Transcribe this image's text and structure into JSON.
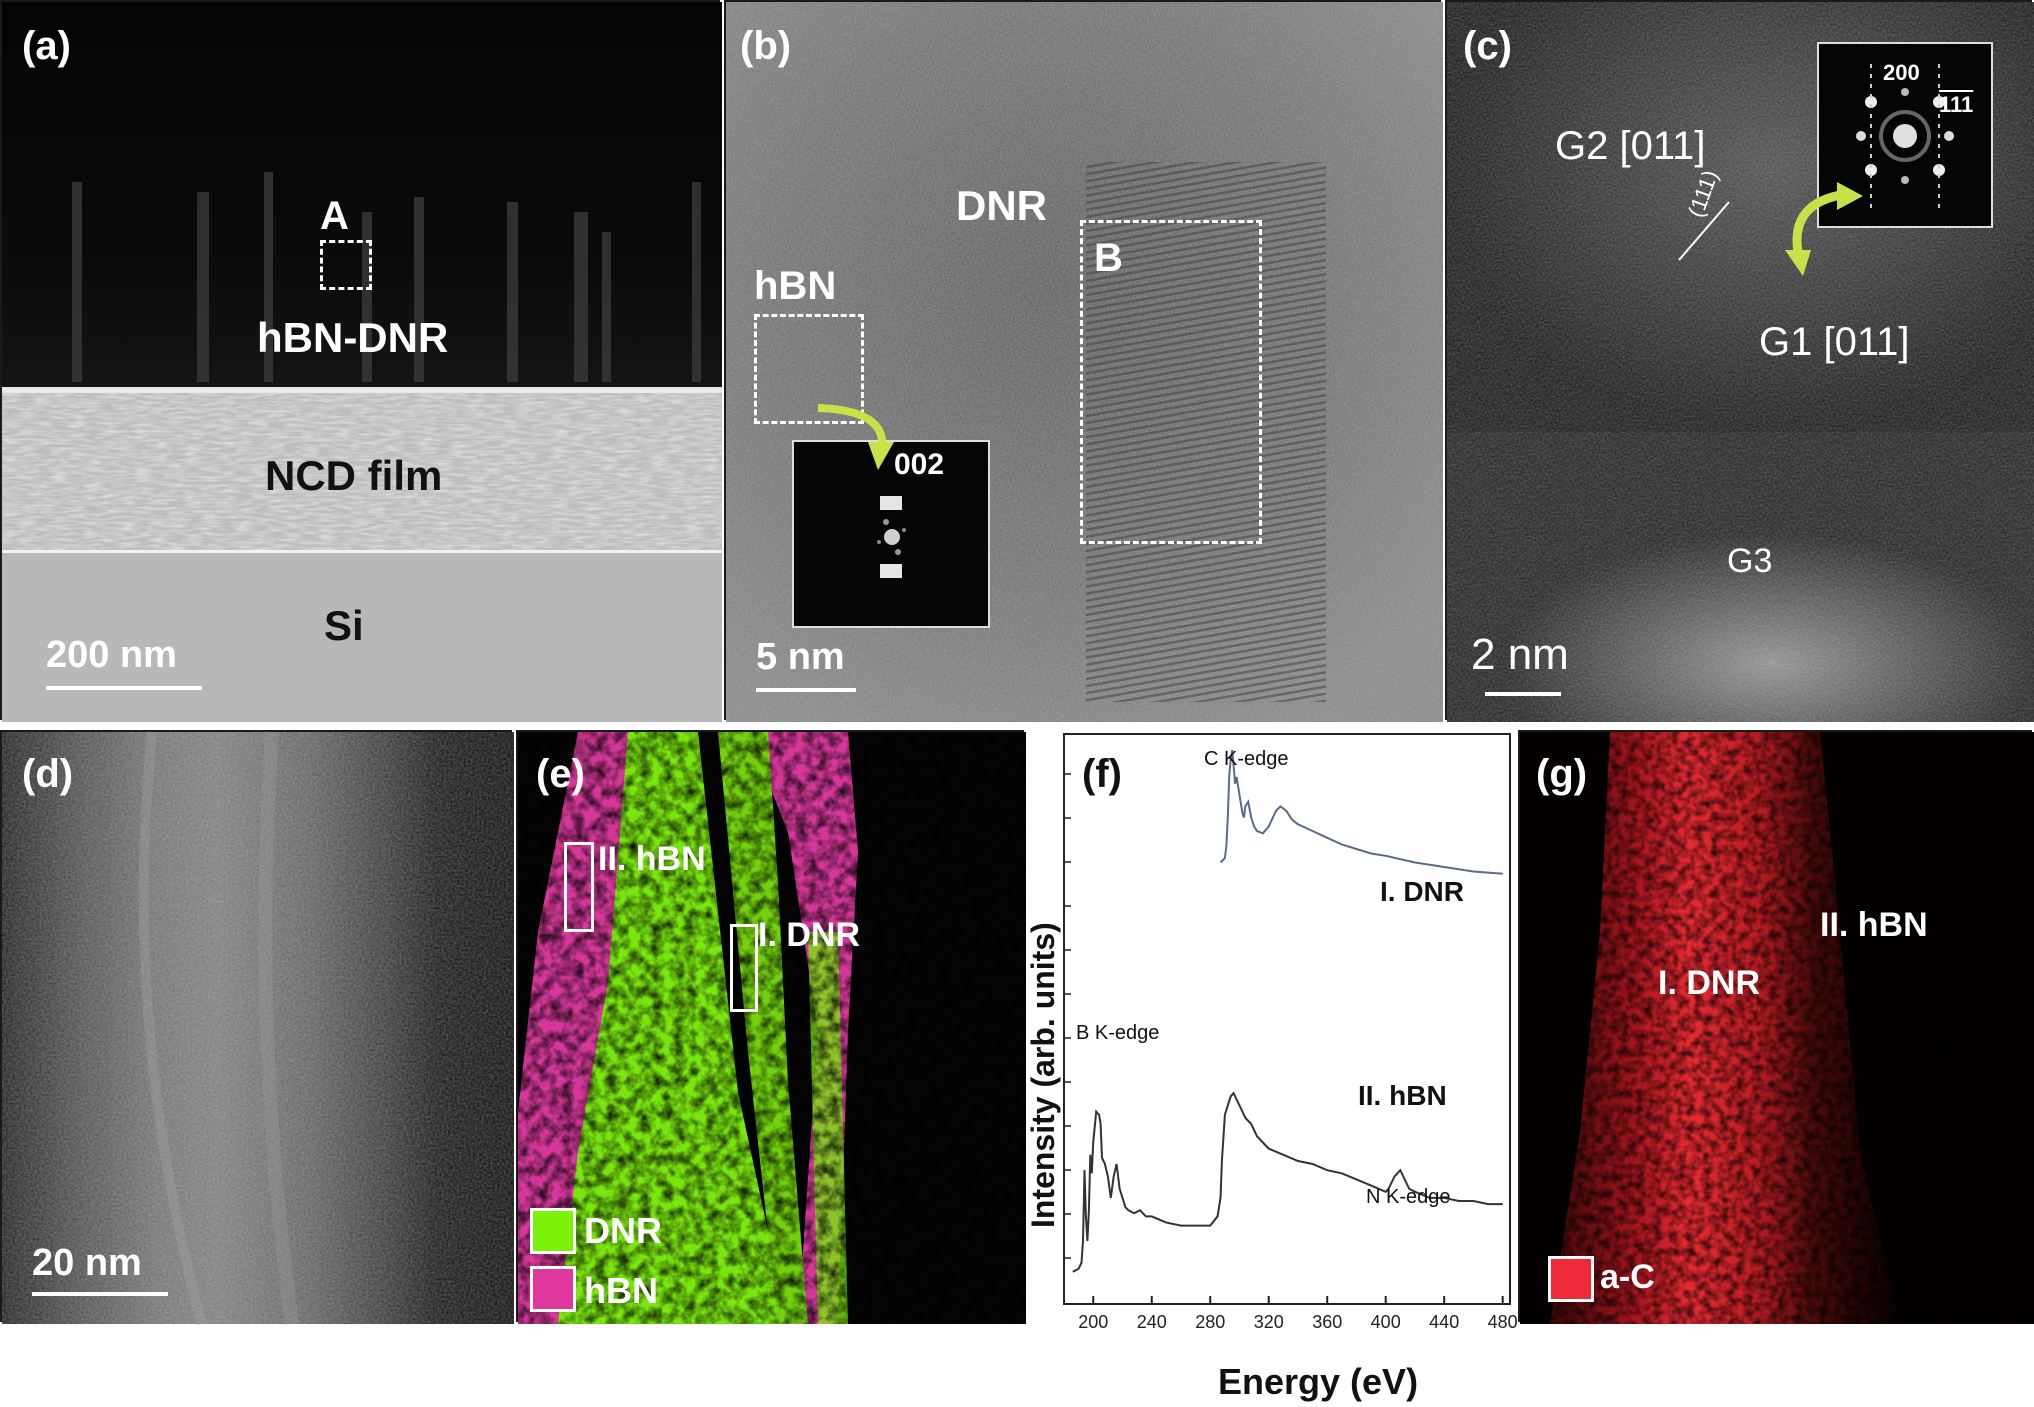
{
  "panel_a": {
    "label": "(a)",
    "box_label": "A",
    "layer_top": "hBN-DNR",
    "layer_mid": "NCD film",
    "layer_bottom": "Si",
    "scale": "200 nm"
  },
  "panel_b": {
    "label": "(b)",
    "dnr": "DNR",
    "hbn": "hBN",
    "box_label": "B",
    "inset_label": "002",
    "scale": "5 nm"
  },
  "panel_c": {
    "label": "(c)",
    "g2": "G2 [011]",
    "g1": "G1 [011]",
    "g3": "G3",
    "plane": "(111)",
    "inset_200": "200",
    "inset_111": "111",
    "scale": "2 nm"
  },
  "panel_d": {
    "label": "(d)",
    "scale": "20 nm"
  },
  "panel_e": {
    "label": "(e)",
    "box_hbn": "II. hBN",
    "box_dnr": "I. DNR",
    "legend": [
      {
        "label": "DNR",
        "color": "#7cf20a"
      },
      {
        "label": "hBN",
        "color": "#e0379f"
      }
    ]
  },
  "panel_f": {
    "label": "(f)",
    "c_edge": "C K-edge",
    "b_edge": "B K-edge",
    "n_edge": "N K-edge",
    "dnr_label": "I. DNR",
    "hbn_label": "II. hBN"
  },
  "panel_g": {
    "label": "(g)",
    "hbn": "II. hBN",
    "dnr": "I. DNR",
    "legend": {
      "label": "a-C",
      "color": "#ee2a3a"
    }
  },
  "chart_data": {
    "type": "line",
    "xlabel": "Energy (eV)",
    "ylabel": "Intensity (arb. units)",
    "xlim": [
      180,
      485
    ],
    "x_ticks": [
      "200",
      "240",
      "280",
      "320",
      "360",
      "400",
      "440",
      "480"
    ],
    "series": [
      {
        "name": "I. DNR",
        "x": [
          287,
          290,
          291,
          292,
          293,
          294,
          295,
          296,
          297,
          298,
          300,
          302,
          303,
          304,
          306,
          308,
          310,
          312,
          316,
          320,
          325,
          328,
          332,
          336,
          340,
          350,
          360,
          370,
          380,
          390,
          400,
          420,
          440,
          460,
          480
        ],
        "y": [
          50,
          52,
          57,
          70,
          88,
          96,
          100,
          93,
          85,
          88,
          80,
          72,
          70,
          75,
          77,
          70,
          66,
          64,
          63,
          66,
          73,
          75,
          73,
          69,
          67,
          64,
          61,
          58,
          56,
          54,
          53,
          50,
          48,
          46,
          45
        ]
      },
      {
        "name": "II. hBN",
        "x": [
          186,
          190,
          192,
          193,
          194,
          195,
          196,
          197,
          198,
          199,
          200,
          202,
          204,
          205,
          206,
          208,
          210,
          212,
          214,
          216,
          218,
          220,
          222,
          224,
          228,
          232,
          236,
          240,
          250,
          260,
          270,
          280,
          285,
          287,
          288,
          290,
          292,
          294,
          296,
          298,
          300,
          304,
          308,
          312,
          316,
          320,
          330,
          340,
          350,
          360,
          370,
          380,
          390,
          400,
          402,
          404,
          406,
          408,
          410,
          412,
          414,
          416,
          420,
          425,
          430,
          440,
          450,
          460,
          470,
          480
        ],
        "y": [
          2,
          3,
          5,
          12,
          35,
          20,
          12,
          22,
          40,
          34,
          44,
          54,
          53,
          50,
          39,
          37,
          33,
          26,
          33,
          37,
          29,
          26,
          23,
          22,
          21,
          22,
          20,
          20,
          18,
          17,
          17,
          17,
          20,
          26,
          38,
          53,
          56,
          59,
          60,
          58,
          56,
          52,
          50,
          46,
          44,
          42,
          40,
          38,
          37,
          35,
          34,
          32,
          30,
          28,
          29,
          31,
          33,
          34,
          35,
          33,
          31,
          29,
          28,
          27,
          26,
          26,
          25,
          25,
          24,
          24
        ]
      }
    ]
  }
}
